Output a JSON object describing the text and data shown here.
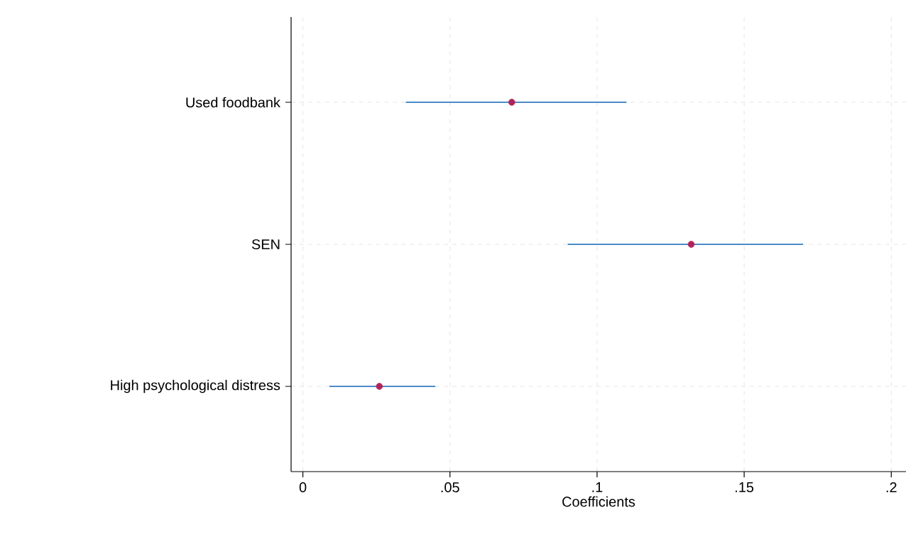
{
  "chart_data": {
    "type": "scatter",
    "orientation": "horizontal",
    "xlabel": "Coefficients",
    "categories": [
      "Used foodbank",
      "SEN",
      "High psychological distress"
    ],
    "series": [
      {
        "color": "#b0245a",
        "values": [
          0.071,
          0.132,
          0.026
        ],
        "errors": [
          [
            0.035,
            0.11
          ],
          [
            0.09,
            0.17
          ],
          [
            0.009,
            0.045
          ]
        ]
      }
    ],
    "xlim": [
      -0.004,
      0.205
    ],
    "xticks": [
      0,
      {
        "value": 0.05,
        "label": ".05"
      },
      {
        "value": 0.1,
        "label": ".1"
      },
      {
        "value": 0.15,
        "label": ".15"
      },
      {
        "value": 0.2,
        "label": ".2"
      }
    ],
    "grid": true,
    "marker": "circle"
  }
}
